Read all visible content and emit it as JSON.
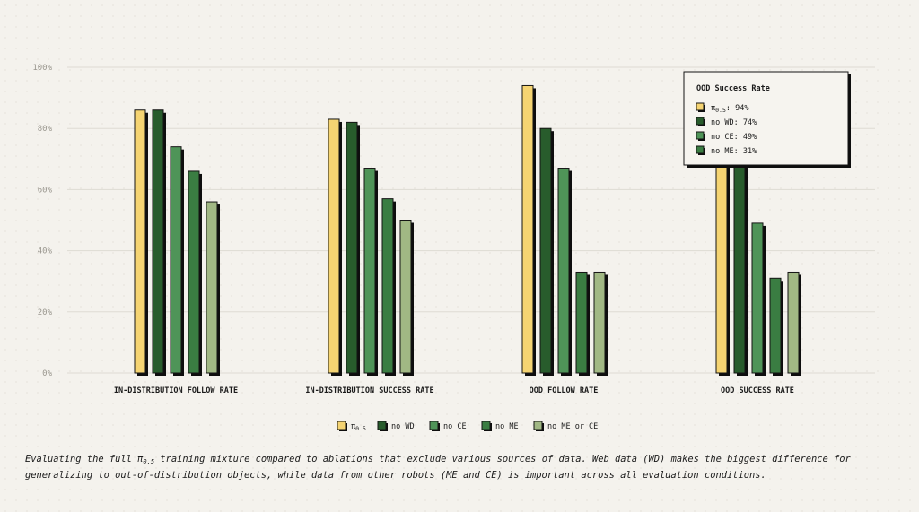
{
  "chart_data": {
    "type": "bar",
    "ylim": [
      0,
      100
    ],
    "yticks": [
      0,
      20,
      40,
      60,
      80,
      100
    ],
    "ytick_suffix": "%",
    "grid": true,
    "categories": [
      "IN-DISTRIBUTION FOLLOW RATE",
      "IN-DISTRIBUTION SUCCESS RATE",
      "OOD FOLLOW RATE",
      "OOD SUCCESS RATE"
    ],
    "series": [
      {
        "name": "π0.5",
        "color": "#f5d472",
        "values": [
          86,
          83,
          94,
          94
        ]
      },
      {
        "name": "no WD",
        "color": "#285c2c",
        "values": [
          86,
          82,
          80,
          74
        ]
      },
      {
        "name": "no CE",
        "color": "#4f9458",
        "values": [
          74,
          67,
          67,
          49
        ]
      },
      {
        "name": "no ME",
        "color": "#3a7d42",
        "values": [
          66,
          57,
          33,
          31
        ]
      },
      {
        "name": "no ME or CE",
        "color": "#a1b884",
        "values": [
          56,
          50,
          33,
          33
        ]
      }
    ],
    "legend_position": "bottom",
    "tooltip": {
      "title": "OOD Success Rate",
      "items": [
        {
          "label": "π0.5",
          "value": "94%",
          "color": "#f5d472"
        },
        {
          "label": "no WD",
          "value": "74%",
          "color": "#285c2c"
        },
        {
          "label": "no CE",
          "value": "49%",
          "color": "#4f9458"
        },
        {
          "label": "no ME",
          "value": "31%",
          "color": "#3a7d42"
        }
      ]
    }
  },
  "caption": {
    "before": "Evaluating the full ",
    "pi": "π",
    "sub": "0.5",
    "after": " training mixture compared to ablations that exclude various sources of data. Web data (WD) makes the biggest difference for generalizing to out-of-distribution objects, while data from other robots (ME and CE) is important across all evaluation conditions."
  }
}
